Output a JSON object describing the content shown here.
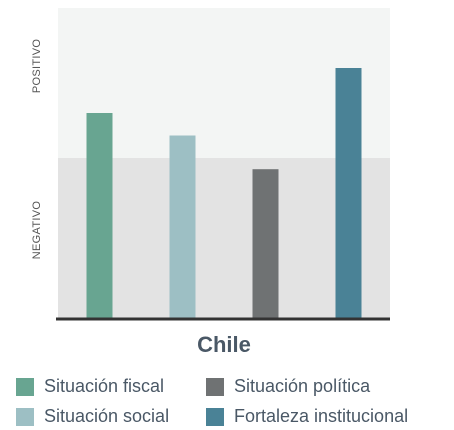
{
  "chart_data": {
    "type": "bar",
    "title": "Chile",
    "ylabel_top": "POSITIVO",
    "ylabel_bottom": "NEGATIVO",
    "baseline_level": 0,
    "ylim": [
      -1,
      1
    ],
    "legend_placement": "bottom",
    "categories": [
      "Situación fiscal",
      "Situación social",
      "Situación política",
      "Fortaleza institucional"
    ],
    "values": [
      0.3,
      0.15,
      -0.07,
      0.6
    ],
    "colors": [
      "#68a591",
      "#9dbfc4",
      "#6f7273",
      "#4a8296"
    ]
  },
  "legend": [
    {
      "label": "Situación fiscal",
      "color": "#68a591"
    },
    {
      "label": "Situación política",
      "color": "#6f7273"
    },
    {
      "label": "Situación social",
      "color": "#9dbfc4"
    },
    {
      "label": "Fortaleza institucional",
      "color": "#4a8296"
    }
  ],
  "colors": {
    "positive_band": "#f3f5f4",
    "negative_band": "#e3e3e3",
    "axis_line": "#333333"
  }
}
